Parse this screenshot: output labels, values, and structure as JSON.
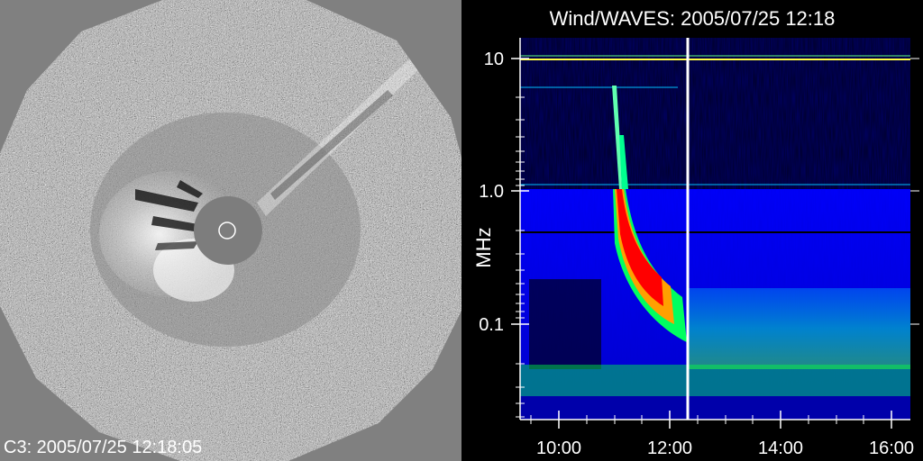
{
  "lasco_c3": {
    "caption": "C3: 2005/07/25 12:18:05"
  },
  "waves": {
    "title": "Wind/WAVES: 2005/07/25 12:18",
    "ylabel": "MHz",
    "y_tick_labels": [
      "10",
      "1.0",
      "0.1"
    ],
    "x_tick_labels": [
      "10:00",
      "12:00",
      "14:00",
      "16:00"
    ],
    "marker_time": "12:18"
  },
  "chart_data": {
    "type": "heatmap",
    "title": "Wind/WAVES: 2005/07/25 12:18",
    "xlabel": "",
    "ylabel": "MHz",
    "y_scale": "log",
    "ylim": [
      0.02,
      14
    ],
    "x_ticks": [
      "10:00",
      "12:00",
      "14:00",
      "16:00"
    ],
    "y_ticks": [
      10,
      1.0,
      0.1
    ],
    "xlim": [
      "09:18",
      "16:24"
    ],
    "vertical_marker": "12:18",
    "colors": {
      "background": "#000000",
      "low": "#0000ff",
      "mid": "#00ffff",
      "high": "#ff0000"
    }
  }
}
